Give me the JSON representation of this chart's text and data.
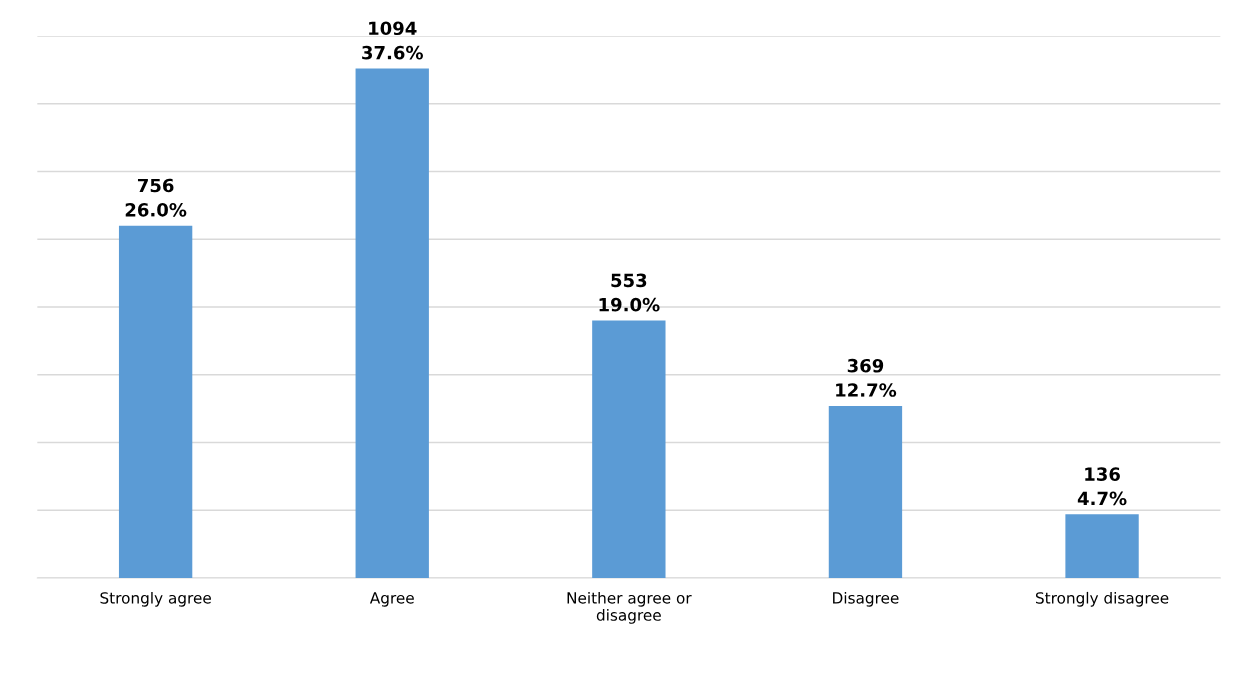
{
  "chart_data": {
    "type": "bar",
    "categories": [
      "Strongly agree",
      "Agree",
      "Neither agree or\ndisagree",
      "Disagree",
      "Strongly disagree"
    ],
    "values": [
      26.0,
      37.6,
      19.0,
      12.7,
      4.7
    ],
    "value_labels": [
      "756\n26.0%",
      "1094\n37.6%",
      "553\n19.0%",
      "369\n12.7%",
      "136\n4.7%"
    ],
    "color": "#5b9bd5",
    "ylim": [
      0,
      40
    ],
    "yticks": [
      {
        "value": 0,
        "label": null
      },
      {
        "value": 5,
        "label": null
      },
      {
        "value": 10,
        "label": null
      },
      {
        "value": 15,
        "label": null
      },
      {
        "value": 20,
        "label": null
      },
      {
        "value": 25,
        "label": null
      },
      {
        "value": 30,
        "label": null
      },
      {
        "value": 35,
        "label": null
      },
      {
        "value": 40,
        "label": null
      }
    ],
    "grid": "y",
    "tick_labels": "x",
    "legend": false
  }
}
